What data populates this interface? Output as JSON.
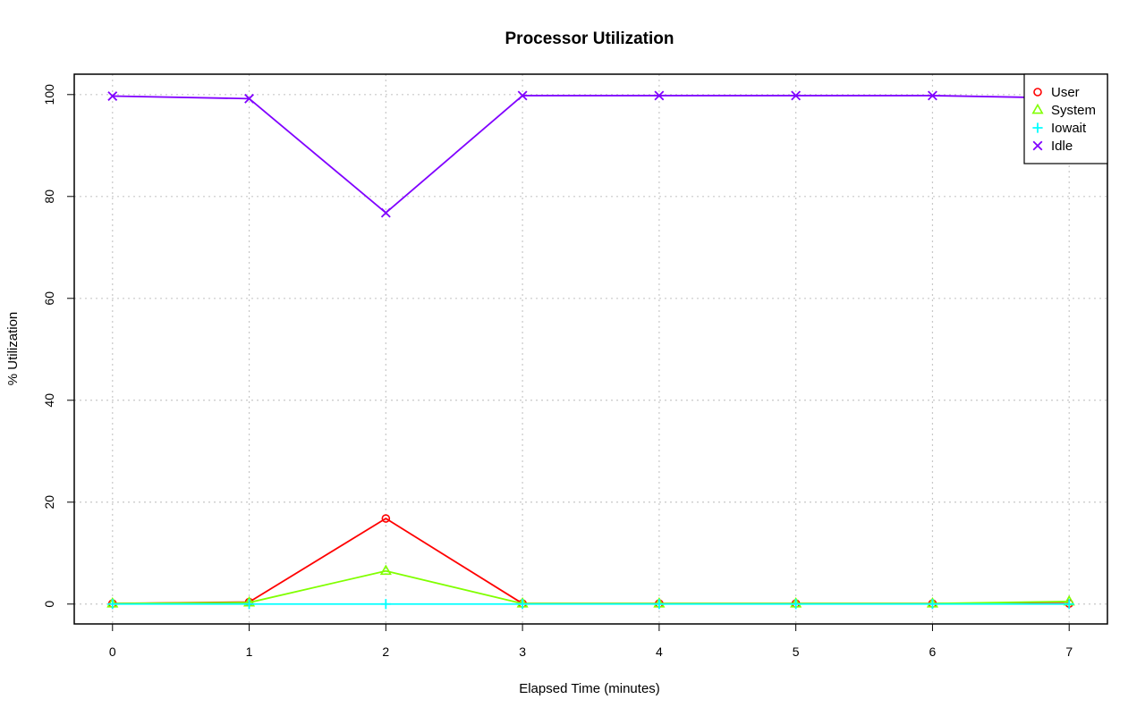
{
  "chart_data": {
    "type": "line",
    "title": "Processor Utilization",
    "xlabel": "Elapsed Time (minutes)",
    "ylabel": "% Utilization",
    "x": [
      0,
      1,
      2,
      3,
      4,
      5,
      6,
      7
    ],
    "xlim": [
      -0.28,
      7.28
    ],
    "ylim": [
      -3.9,
      104
    ],
    "xticks": [
      0,
      1,
      2,
      3,
      4,
      5,
      6,
      7
    ],
    "yticks": [
      0,
      20,
      40,
      60,
      80,
      100
    ],
    "grid": true,
    "legend_position": "top-right",
    "series": [
      {
        "name": "User",
        "color": "#ff0000",
        "marker": "circle",
        "values": [
          0.1,
          0.4,
          16.8,
          0.1,
          0.1,
          0.1,
          0.1,
          0.1
        ]
      },
      {
        "name": "System",
        "color": "#80ff00",
        "marker": "triangle",
        "values": [
          0.1,
          0.3,
          6.5,
          0.1,
          0.1,
          0.1,
          0.1,
          0.5
        ]
      },
      {
        "name": "Iowait",
        "color": "#00ffff",
        "marker": "plus",
        "values": [
          0.0,
          0.0,
          0.0,
          0.0,
          0.0,
          0.0,
          0.0,
          0.0
        ]
      },
      {
        "name": "Idle",
        "color": "#8000ff",
        "marker": "cross",
        "values": [
          99.7,
          99.2,
          76.8,
          99.8,
          99.8,
          99.8,
          99.8,
          99.3
        ]
      }
    ]
  }
}
